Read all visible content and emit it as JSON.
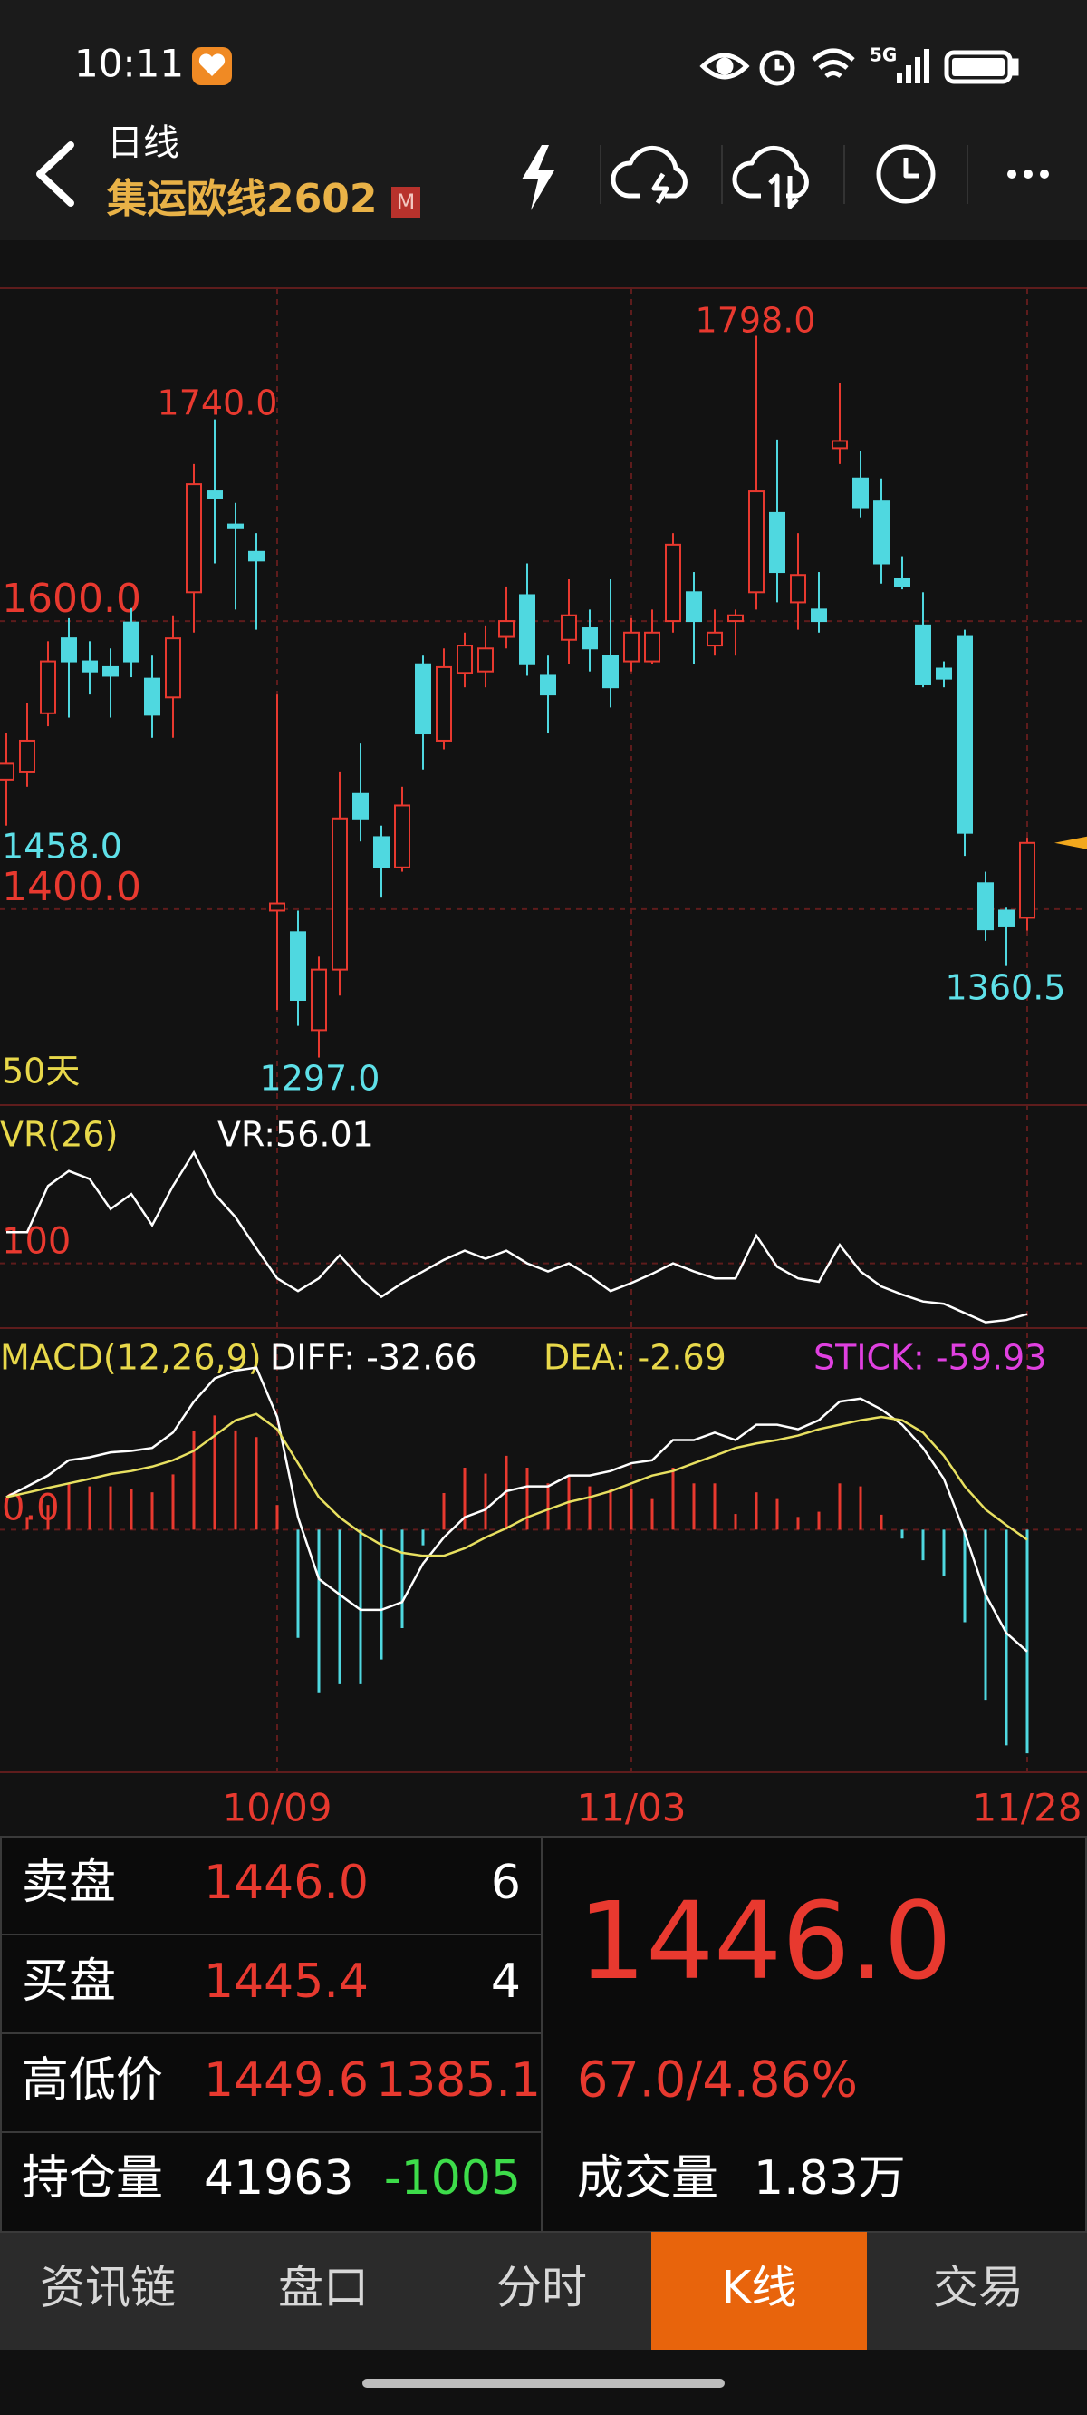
{
  "status_bar": {
    "time": "10:11"
  },
  "header": {
    "period": "日线",
    "symbol": "集运欧线2602",
    "badge": "M"
  },
  "chart_data": [
    {
      "type": "candlestick",
      "categories": [
        null,
        null,
        null,
        null,
        null,
        null,
        null,
        null,
        null,
        null,
        null,
        null,
        null,
        "10/09",
        null,
        null,
        null,
        null,
        null,
        null,
        null,
        null,
        null,
        null,
        null,
        null,
        null,
        null,
        null,
        null,
        "11/03",
        null,
        null,
        null,
        null,
        null,
        null,
        null,
        null,
        null,
        null,
        null,
        null,
        null,
        null,
        null,
        null,
        null,
        null,
        "11/28"
      ],
      "open": [
        1490,
        1495,
        1536,
        1588,
        1572,
        1568,
        1599,
        1560,
        1547,
        1620,
        1690,
        1667,
        1648,
        1399,
        1384,
        1316,
        1358,
        1480,
        1450,
        1429,
        1570,
        1517,
        1564,
        1565,
        1589,
        1618,
        1562,
        1587,
        1595,
        1576,
        1572,
        1572,
        1600,
        1620,
        1583,
        1600,
        1620,
        1675,
        1613,
        1608,
        1720,
        1699,
        1683,
        1629,
        1597,
        1567,
        1589,
        1418,
        1399,
        1394
      ],
      "high": [
        1522,
        1543,
        1586,
        1602,
        1586,
        1581,
        1609,
        1576,
        1604,
        1709,
        1740,
        1682,
        1661,
        1549,
        1399,
        1367,
        1495,
        1515,
        1458,
        1485,
        1576,
        1581,
        1592,
        1597,
        1624,
        1640,
        1576,
        1629,
        1608,
        1629,
        1602,
        1608,
        1661,
        1634,
        1608,
        1608,
        1798,
        1726,
        1661,
        1634,
        1765,
        1718,
        1699,
        1645,
        1620,
        1572,
        1594,
        1426,
        1401,
        1449.6
      ],
      "low": [
        1458,
        1485,
        1527,
        1533,
        1549,
        1533,
        1561,
        1519,
        1519,
        1592,
        1640,
        1608,
        1594,
        1330,
        1319,
        1297,
        1340,
        1447,
        1408,
        1426,
        1497,
        1511,
        1554,
        1554,
        1581,
        1562,
        1522,
        1570,
        1565,
        1540,
        1565,
        1570,
        1592,
        1570,
        1576,
        1576,
        1608,
        1613,
        1594,
        1592,
        1709,
        1672,
        1626,
        1622,
        1554,
        1554,
        1437,
        1378,
        1360.5,
        1385.1
      ],
      "close": [
        1501,
        1517,
        1572,
        1572,
        1565,
        1562,
        1572,
        1535,
        1588,
        1695,
        1685,
        1665,
        1642,
        1404,
        1337,
        1358,
        1463,
        1463,
        1429,
        1472,
        1522,
        1568,
        1583,
        1581,
        1600,
        1570,
        1549,
        1604,
        1581,
        1554,
        1592,
        1592,
        1653,
        1600,
        1592,
        1604,
        1690,
        1634,
        1632,
        1600,
        1725,
        1679,
        1640,
        1624,
        1556,
        1560,
        1453,
        1386,
        1388,
        1446
      ],
      "up_color": "#e8392f",
      "down_color": "#4fd8e0",
      "ylim": [
        1264,
        1831
      ],
      "yticks": [
        {
          "value": 1400,
          "label": "1400.0"
        },
        {
          "value": 1600,
          "label": "1600.0"
        }
      ],
      "annotations": [
        "1740.0",
        "1798.0",
        "1297.0",
        "1360.5",
        "1458.0",
        "50天"
      ]
    },
    {
      "type": "line",
      "title": "VR(26)",
      "readout": "VR:56.01",
      "series": [
        {
          "color": "#ffffff",
          "values": [
            127,
            127,
            167,
            180,
            173,
            147,
            160,
            133,
            167,
            196,
            160,
            140,
            113,
            87,
            76,
            87,
            107,
            87,
            71,
            83,
            93,
            103,
            111,
            104,
            111,
            100,
            93,
            100,
            89,
            76,
            83,
            91,
            100,
            93,
            87,
            87,
            124,
            97,
            87,
            84,
            116,
            93,
            80,
            73,
            67,
            65,
            57,
            49,
            51,
            56.01
          ]
        }
      ],
      "ylim": [
        44,
        237
      ],
      "yticks": [
        100
      ]
    },
    {
      "type": "macd",
      "title": "MACD(12,26,9)",
      "readouts": [
        "DIFF: -32.66",
        "DEA: -2.69",
        "STICK: -59.93"
      ],
      "series": [
        {
          "color": "#ffffff",
          "values": [
            8.7,
            11.6,
            14.5,
            18.6,
            19.4,
            20.7,
            21.1,
            21.9,
            26.0,
            34.3,
            40.5,
            42.6,
            43.4,
            30.2,
            3.3,
            -13.2,
            -17.4,
            -21.5,
            -21.5,
            -19.4,
            -9.1,
            -2.1,
            3.3,
            5.4,
            10.3,
            11.6,
            11.6,
            14.5,
            14.5,
            15.7,
            17.8,
            18.6,
            24.0,
            24.0,
            26.0,
            24.0,
            28.1,
            28.1,
            26.9,
            29.3,
            34.3,
            35.1,
            32.2,
            28.1,
            21.9,
            13.6,
            -0.8,
            -17.4,
            -27.7,
            -32.66
          ]
        },
        {
          "color": "#e8e060",
          "values": [
            8.7,
            9.9,
            11.2,
            12.4,
            13.6,
            14.9,
            15.7,
            16.9,
            18.6,
            21.1,
            25.2,
            29.3,
            31.0,
            26.9,
            17.8,
            8.7,
            3.3,
            -0.8,
            -4.1,
            -6.2,
            -7.0,
            -7.0,
            -5.0,
            -2.1,
            0.4,
            3.3,
            5.4,
            7.4,
            8.7,
            10.3,
            12.4,
            14.5,
            15.7,
            17.8,
            19.8,
            21.9,
            23.1,
            24.0,
            25.2,
            26.9,
            28.1,
            29.3,
            30.2,
            29.3,
            26.0,
            19.8,
            11.6,
            5.4,
            1.2,
            -2.69
          ]
        },
        {
          "up_color": "#e8392f",
          "down_color": "#4fd8e0",
          "values": [
            0,
            3.4,
            6.6,
            12.4,
            11.6,
            11.6,
            10.8,
            10.0,
            14.8,
            26.4,
            30.6,
            26.6,
            24.8,
            6.6,
            -29.0,
            -43.8,
            -41.4,
            -41.4,
            -34.8,
            -26.4,
            -4.2,
            9.8,
            16.6,
            15.0,
            19.8,
            16.6,
            12.4,
            14.2,
            11.6,
            10.8,
            10.8,
            8.2,
            16.6,
            12.4,
            12.4,
            4.2,
            10.0,
            8.2,
            3.4,
            4.8,
            12.4,
            11.6,
            4.0,
            -2.4,
            -8.2,
            -12.4,
            -24.8,
            -45.6,
            -57.8,
            -59.93
          ]
        }
      ],
      "ylim": [
        -65,
        54
      ],
      "yticks": [
        {
          "value": 0,
          "label": "0.0"
        }
      ]
    }
  ],
  "quote": {
    "rows": [
      [
        "卖盘",
        "1446.0",
        "6"
      ],
      [
        "买盘",
        "1445.4",
        "4"
      ],
      [
        "高低价",
        "1449.6",
        "1385.1"
      ],
      [
        "持仓量",
        "41963",
        "-1005"
      ]
    ],
    "last": "1446.0",
    "change": "67.0/4.86%",
    "volume_label": "成交量",
    "volume": "1.83万"
  },
  "tabs": [
    "资讯链",
    "盘口",
    "分时",
    "K线",
    "交易"
  ]
}
